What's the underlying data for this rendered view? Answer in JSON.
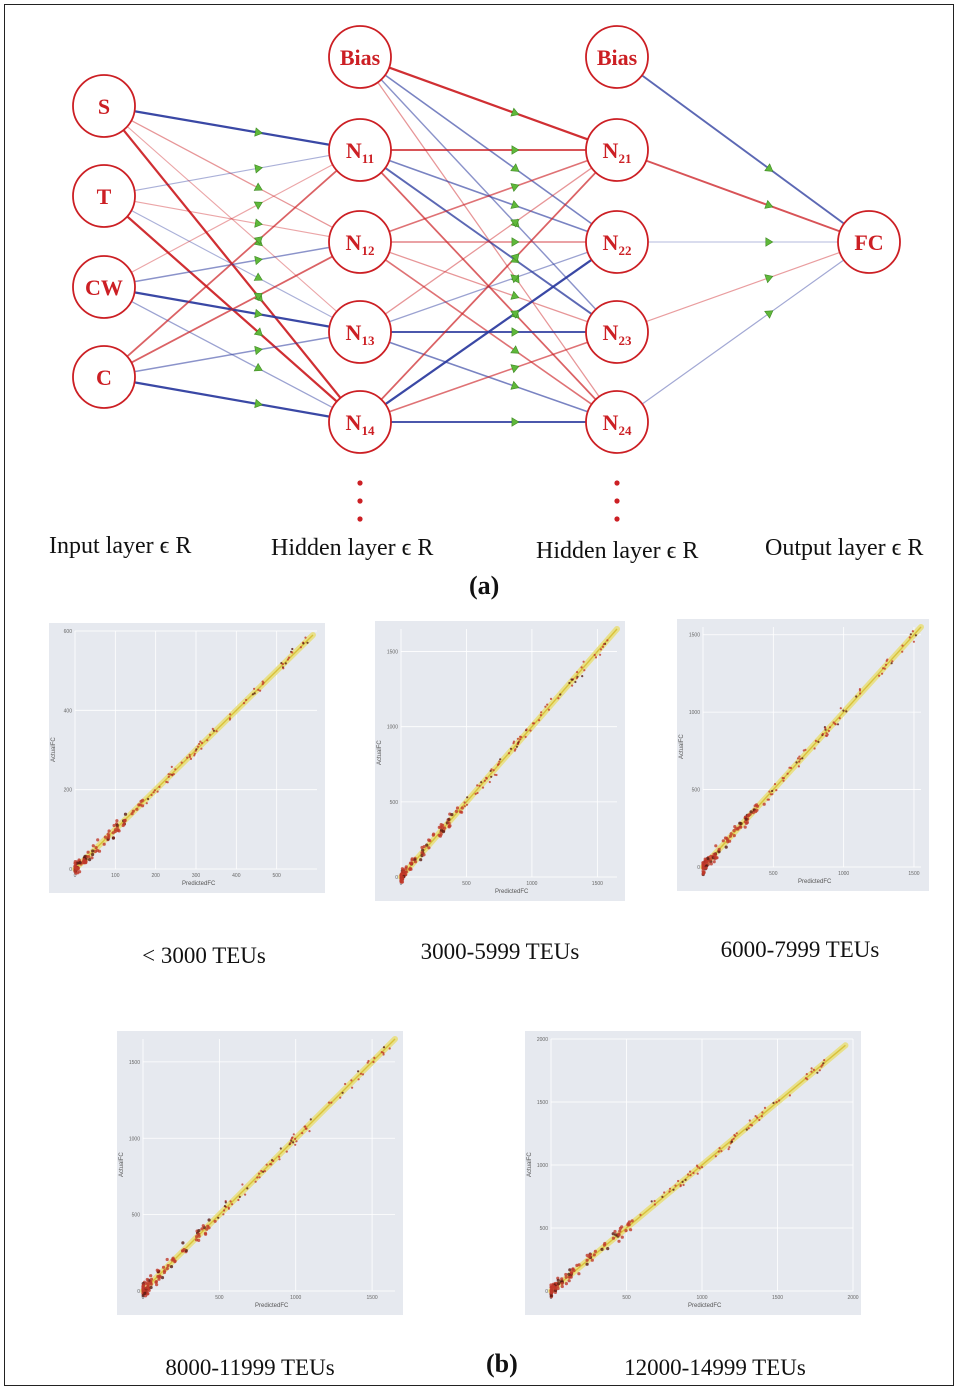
{
  "network": {
    "input_nodes": [
      {
        "id": "S",
        "label": "S"
      },
      {
        "id": "T",
        "label": "T"
      },
      {
        "id": "CW",
        "label": "CW"
      },
      {
        "id": "C",
        "label": "C"
      }
    ],
    "hidden1_bias": "Bias",
    "hidden1_nodes": [
      {
        "id": "N11",
        "label": "N",
        "sub": "11"
      },
      {
        "id": "N12",
        "label": "N",
        "sub": "12"
      },
      {
        "id": "N13",
        "label": "N",
        "sub": "13"
      },
      {
        "id": "N14",
        "label": "N",
        "sub": "14"
      }
    ],
    "hidden2_bias": "Bias",
    "hidden2_nodes": [
      {
        "id": "N21",
        "label": "N",
        "sub": "21"
      },
      {
        "id": "N22",
        "label": "N",
        "sub": "22"
      },
      {
        "id": "N23",
        "label": "N",
        "sub": "23"
      },
      {
        "id": "N24",
        "label": "N",
        "sub": "24"
      }
    ],
    "output_node": {
      "id": "FC",
      "label": "FC"
    },
    "ellipsis": "⋮",
    "layer_labels": [
      "Input layer ϵ R",
      "Hidden layer ϵ R",
      "Hidden layer ϵ R",
      "Output layer ϵ R"
    ],
    "colors": {
      "node": "#cc1f24",
      "positive": "#cc1f24",
      "negative": "#2b3a9e",
      "arrow": "#5fb83a"
    }
  },
  "panel_labels": {
    "a": "(a)",
    "b": "(b)"
  },
  "plots": [
    {
      "category": "< 3000 TEUs",
      "xlabel": "PredictedFC",
      "ylabel": "ActualFC",
      "xticks": [
        0,
        100,
        200,
        300,
        400,
        500
      ],
      "yticks": [
        0,
        200,
        400,
        600
      ],
      "max": 590
    },
    {
      "category": "3000-5999 TEUs",
      "xlabel": "PredictedFC",
      "ylabel": "ActualFC",
      "xticks": [
        0,
        500,
        1000,
        1500
      ],
      "yticks": [
        0,
        500,
        1000,
        1500
      ],
      "max": 1650
    },
    {
      "category": "6000-7999 TEUs",
      "xlabel": "PredictedFC",
      "ylabel": "ActualFC",
      "xticks": [
        0,
        500,
        1000,
        1500
      ],
      "yticks": [
        0,
        500,
        1000,
        1500
      ],
      "max": 1550
    },
    {
      "category": "8000-11999 TEUs",
      "xlabel": "PredictedFC",
      "ylabel": "ActualFC",
      "xticks": [
        0,
        500,
        1000,
        1500
      ],
      "yticks": [
        0,
        500,
        1000,
        1500
      ],
      "max": 1650
    },
    {
      "category": "12000-14999 TEUs",
      "xlabel": "PredictedFC",
      "ylabel": "ActualFC",
      "xticks": [
        0,
        500,
        1000,
        1500,
        2000
      ],
      "yticks": [
        0,
        500,
        1000,
        1500,
        2000
      ],
      "max": 1950
    }
  ]
}
